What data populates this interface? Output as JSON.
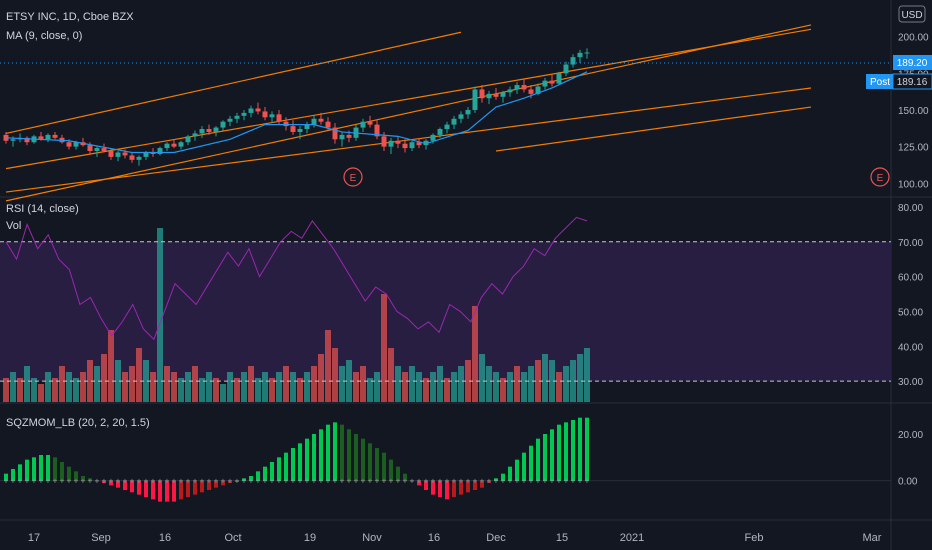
{
  "header": {
    "symbol_line": "ETSY INC, 1D, Cboe BZX",
    "ma_line": "MA (9, close, 0)",
    "currency": "USD"
  },
  "price_pane": {
    "price_axis_ticks": [
      200,
      175,
      150,
      125,
      100
    ],
    "last_price_label": "189.20",
    "post_label": "Post",
    "post_price_label": "189.16",
    "earnings_marker": "E",
    "colors": {
      "up": "#26a69a",
      "down": "#ef5350",
      "ma": "#2196f3",
      "trendline": "#f57c00",
      "post_badge": "#2196f3"
    }
  },
  "rsi_pane": {
    "title": "RSI (14, close)",
    "vol_label": "Vol",
    "axis_ticks": [
      80,
      70,
      60,
      50,
      40,
      30
    ],
    "bands": [
      70,
      30
    ],
    "colors": {
      "line": "#9c27b0",
      "band_fill": "#2a1f45",
      "vol_up": "#26a69a",
      "vol_down": "#ef5350"
    }
  },
  "sqz_pane": {
    "title": "SQZMOM_LB (20, 2, 20, 1.5)",
    "axis_ticks": [
      20,
      0
    ],
    "colors": {
      "pos_strong": "#00c853",
      "pos_weak": "#1b5e20",
      "neg_strong": "#ff1744",
      "neg_weak": "#b71c1c"
    }
  },
  "x_axis": {
    "labels": [
      "17",
      "Sep",
      "16",
      "Oct",
      "19",
      "Nov",
      "16",
      "Dec",
      "15",
      "2021",
      "Feb",
      "Mar"
    ]
  },
  "chart_data": {
    "type": "candlestick",
    "ohlc": [
      [
        133,
        135,
        127,
        129
      ],
      [
        129,
        132,
        125,
        130
      ],
      [
        130,
        134,
        128,
        131
      ],
      [
        131,
        132,
        126,
        128
      ],
      [
        128,
        133,
        127,
        132
      ],
      [
        132,
        135,
        129,
        130
      ],
      [
        130,
        134,
        128,
        133
      ],
      [
        133,
        135,
        130,
        131
      ],
      [
        131,
        133,
        127,
        128
      ],
      [
        128,
        130,
        123,
        125
      ],
      [
        125,
        129,
        123,
        128
      ],
      [
        128,
        131,
        125,
        126
      ],
      [
        126,
        128,
        120,
        122
      ],
      [
        122,
        125,
        118,
        124
      ],
      [
        124,
        127,
        121,
        122
      ],
      [
        122,
        124,
        116,
        118
      ],
      [
        118,
        122,
        115,
        121
      ],
      [
        121,
        123,
        117,
        119
      ],
      [
        119,
        121,
        114,
        116
      ],
      [
        116,
        119,
        112,
        118
      ],
      [
        118,
        122,
        116,
        121
      ],
      [
        121,
        124,
        118,
        120
      ],
      [
        120,
        125,
        119,
        124
      ],
      [
        124,
        128,
        122,
        127
      ],
      [
        127,
        130,
        124,
        125
      ],
      [
        125,
        129,
        123,
        128
      ],
      [
        128,
        133,
        126,
        132
      ],
      [
        132,
        136,
        129,
        134
      ],
      [
        134,
        139,
        131,
        137
      ],
      [
        137,
        140,
        133,
        135
      ],
      [
        135,
        139,
        132,
        138
      ],
      [
        138,
        143,
        136,
        142
      ],
      [
        142,
        146,
        139,
        144
      ],
      [
        144,
        148,
        141,
        146
      ],
      [
        146,
        150,
        143,
        148
      ],
      [
        148,
        153,
        145,
        151
      ],
      [
        151,
        155,
        147,
        149
      ],
      [
        149,
        152,
        143,
        145
      ],
      [
        145,
        149,
        141,
        147
      ],
      [
        147,
        150,
        140,
        142
      ],
      [
        142,
        145,
        136,
        139
      ],
      [
        139,
        143,
        133,
        135
      ],
      [
        135,
        139,
        130,
        137
      ],
      [
        137,
        142,
        134,
        140
      ],
      [
        140,
        146,
        138,
        144
      ],
      [
        144,
        148,
        140,
        142
      ],
      [
        142,
        145,
        136,
        138
      ],
      [
        138,
        141,
        127,
        130
      ],
      [
        130,
        135,
        125,
        133
      ],
      [
        133,
        136,
        128,
        131
      ],
      [
        131,
        140,
        129,
        138
      ],
      [
        138,
        144,
        135,
        142
      ],
      [
        142,
        146,
        138,
        140
      ],
      [
        140,
        143,
        130,
        132
      ],
      [
        132,
        135,
        122,
        125
      ],
      [
        125,
        131,
        120,
        129
      ],
      [
        129,
        132,
        124,
        127
      ],
      [
        127,
        130,
        121,
        124
      ],
      [
        124,
        129,
        122,
        128
      ],
      [
        128,
        131,
        124,
        126
      ],
      [
        126,
        130,
        123,
        129
      ],
      [
        129,
        134,
        127,
        133
      ],
      [
        133,
        138,
        131,
        137
      ],
      [
        137,
        142,
        134,
        140
      ],
      [
        140,
        146,
        137,
        144
      ],
      [
        144,
        149,
        141,
        147
      ],
      [
        147,
        152,
        144,
        150
      ],
      [
        150,
        166,
        148,
        164
      ],
      [
        164,
        167,
        155,
        158
      ],
      [
        158,
        163,
        154,
        161
      ],
      [
        161,
        165,
        157,
        159
      ],
      [
        159,
        163,
        155,
        162
      ],
      [
        162,
        166,
        159,
        164
      ],
      [
        164,
        169,
        161,
        167
      ],
      [
        167,
        171,
        162,
        164
      ],
      [
        164,
        167,
        158,
        161
      ],
      [
        161,
        168,
        160,
        166
      ],
      [
        166,
        172,
        164,
        170
      ],
      [
        170,
        174,
        166,
        168
      ],
      [
        168,
        176,
        167,
        175
      ],
      [
        175,
        183,
        173,
        181
      ],
      [
        181,
        188,
        179,
        186
      ],
      [
        186,
        191,
        182,
        189
      ],
      [
        189,
        192,
        185,
        189.2
      ]
    ],
    "ma9": [
      [
        0,
        131
      ],
      [
        9,
        129
      ],
      [
        18,
        121
      ],
      [
        24,
        121
      ],
      [
        32,
        130
      ],
      [
        37,
        140
      ],
      [
        44,
        140
      ],
      [
        48,
        135
      ],
      [
        56,
        132
      ],
      [
        60,
        127
      ],
      [
        66,
        136
      ],
      [
        70,
        152
      ],
      [
        74,
        158
      ],
      [
        78,
        165
      ],
      [
        83,
        176
      ]
    ],
    "rsi": [
      [
        0,
        70
      ],
      [
        2,
        65
      ],
      [
        4,
        75
      ],
      [
        6,
        68
      ],
      [
        8,
        72
      ],
      [
        10,
        65
      ],
      [
        12,
        62
      ],
      [
        14,
        52
      ],
      [
        16,
        54
      ],
      [
        18,
        48
      ],
      [
        20,
        43
      ],
      [
        22,
        47
      ],
      [
        24,
        52
      ],
      [
        26,
        45
      ],
      [
        28,
        42
      ],
      [
        30,
        50
      ],
      [
        32,
        58
      ],
      [
        34,
        55
      ],
      [
        36,
        52
      ],
      [
        38,
        57
      ],
      [
        40,
        62
      ],
      [
        42,
        67
      ],
      [
        44,
        63
      ],
      [
        46,
        68
      ],
      [
        48,
        60
      ],
      [
        50,
        65
      ],
      [
        52,
        70
      ],
      [
        54,
        73
      ],
      [
        56,
        71
      ],
      [
        58,
        76
      ],
      [
        60,
        72
      ],
      [
        62,
        68
      ],
      [
        64,
        63
      ],
      [
        66,
        58
      ],
      [
        68,
        53
      ],
      [
        70,
        57
      ],
      [
        72,
        55
      ],
      [
        74,
        50
      ],
      [
        76,
        48
      ],
      [
        78,
        45
      ],
      [
        80,
        47
      ],
      [
        82,
        44
      ],
      [
        84,
        52
      ],
      [
        86,
        50
      ],
      [
        88,
        47
      ],
      [
        90,
        54
      ],
      [
        92,
        58
      ],
      [
        94,
        55
      ],
      [
        96,
        60
      ],
      [
        98,
        63
      ],
      [
        100,
        68
      ],
      [
        102,
        66
      ],
      [
        104,
        71
      ],
      [
        106,
        74
      ],
      [
        108,
        77
      ],
      [
        110,
        76
      ]
    ],
    "volume": [
      [
        4,
        "d"
      ],
      [
        5,
        "u"
      ],
      [
        4,
        "d"
      ],
      [
        6,
        "u"
      ],
      [
        4,
        "u"
      ],
      [
        3,
        "d"
      ],
      [
        5,
        "u"
      ],
      [
        4,
        "d"
      ],
      [
        6,
        "d"
      ],
      [
        5,
        "u"
      ],
      [
        4,
        "u"
      ],
      [
        5,
        "d"
      ],
      [
        7,
        "d"
      ],
      [
        6,
        "u"
      ],
      [
        8,
        "d"
      ],
      [
        12,
        "d"
      ],
      [
        7,
        "u"
      ],
      [
        5,
        "d"
      ],
      [
        6,
        "d"
      ],
      [
        9,
        "d"
      ],
      [
        7,
        "u"
      ],
      [
        5,
        "d"
      ],
      [
        29,
        "u"
      ],
      [
        6,
        "d"
      ],
      [
        5,
        "d"
      ],
      [
        4,
        "u"
      ],
      [
        5,
        "u"
      ],
      [
        6,
        "d"
      ],
      [
        4,
        "u"
      ],
      [
        5,
        "u"
      ],
      [
        4,
        "d"
      ],
      [
        3,
        "u"
      ],
      [
        5,
        "u"
      ],
      [
        4,
        "d"
      ],
      [
        5,
        "u"
      ],
      [
        6,
        "d"
      ],
      [
        4,
        "u"
      ],
      [
        5,
        "u"
      ],
      [
        4,
        "d"
      ],
      [
        5,
        "u"
      ],
      [
        6,
        "d"
      ],
      [
        5,
        "u"
      ],
      [
        4,
        "d"
      ],
      [
        5,
        "u"
      ],
      [
        6,
        "d"
      ],
      [
        8,
        "d"
      ],
      [
        12,
        "d"
      ],
      [
        9,
        "d"
      ],
      [
        6,
        "u"
      ],
      [
        7,
        "u"
      ],
      [
        5,
        "d"
      ],
      [
        6,
        "d"
      ],
      [
        4,
        "u"
      ],
      [
        5,
        "u"
      ],
      [
        18,
        "d"
      ],
      [
        9,
        "d"
      ],
      [
        6,
        "u"
      ],
      [
        5,
        "d"
      ],
      [
        6,
        "u"
      ],
      [
        5,
        "u"
      ],
      [
        4,
        "d"
      ],
      [
        5,
        "u"
      ],
      [
        6,
        "u"
      ],
      [
        4,
        "d"
      ],
      [
        5,
        "u"
      ],
      [
        6,
        "u"
      ],
      [
        7,
        "d"
      ],
      [
        16,
        "d"
      ],
      [
        8,
        "u"
      ],
      [
        6,
        "u"
      ],
      [
        5,
        "u"
      ],
      [
        4,
        "d"
      ],
      [
        5,
        "u"
      ],
      [
        6,
        "d"
      ],
      [
        5,
        "u"
      ],
      [
        6,
        "u"
      ],
      [
        7,
        "d"
      ],
      [
        8,
        "u"
      ],
      [
        7,
        "u"
      ],
      [
        5,
        "d"
      ],
      [
        6,
        "u"
      ],
      [
        7,
        "u"
      ],
      [
        8,
        "u"
      ],
      [
        9,
        "u"
      ]
    ],
    "squeeze": [
      [
        0,
        3
      ],
      [
        1,
        5
      ],
      [
        2,
        7
      ],
      [
        3,
        9
      ],
      [
        4,
        10
      ],
      [
        5,
        11
      ],
      [
        6,
        11
      ],
      [
        7,
        10
      ],
      [
        8,
        8
      ],
      [
        9,
        6
      ],
      [
        10,
        4
      ],
      [
        11,
        2
      ],
      [
        12,
        1
      ],
      [
        13,
        0
      ],
      [
        14,
        -1
      ],
      [
        15,
        -2
      ],
      [
        16,
        -3
      ],
      [
        17,
        -4
      ],
      [
        18,
        -5
      ],
      [
        19,
        -6
      ],
      [
        20,
        -7
      ],
      [
        21,
        -8
      ],
      [
        22,
        -9
      ],
      [
        23,
        -9
      ],
      [
        24,
        -9
      ],
      [
        25,
        -8
      ],
      [
        26,
        -7
      ],
      [
        27,
        -6
      ],
      [
        28,
        -5
      ],
      [
        29,
        -4
      ],
      [
        30,
        -3
      ],
      [
        31,
        -2
      ],
      [
        32,
        -1
      ],
      [
        33,
        0
      ],
      [
        34,
        1
      ],
      [
        35,
        2
      ],
      [
        36,
        4
      ],
      [
        37,
        6
      ],
      [
        38,
        8
      ],
      [
        39,
        10
      ],
      [
        40,
        12
      ],
      [
        41,
        14
      ],
      [
        42,
        16
      ],
      [
        43,
        18
      ],
      [
        44,
        20
      ],
      [
        45,
        22
      ],
      [
        46,
        24
      ],
      [
        47,
        25
      ],
      [
        48,
        24
      ],
      [
        49,
        22
      ],
      [
        50,
        20
      ],
      [
        51,
        18
      ],
      [
        52,
        16
      ],
      [
        53,
        14
      ],
      [
        54,
        12
      ],
      [
        55,
        9
      ],
      [
        56,
        6
      ],
      [
        57,
        3
      ],
      [
        58,
        0
      ],
      [
        59,
        -2
      ],
      [
        60,
        -4
      ],
      [
        61,
        -6
      ],
      [
        62,
        -7
      ],
      [
        63,
        -8
      ],
      [
        64,
        -7
      ],
      [
        65,
        -6
      ],
      [
        66,
        -5
      ],
      [
        67,
        -4
      ],
      [
        68,
        -3
      ],
      [
        69,
        -1
      ],
      [
        70,
        1
      ],
      [
        71,
        3
      ],
      [
        72,
        6
      ],
      [
        73,
        9
      ],
      [
        74,
        12
      ],
      [
        75,
        15
      ],
      [
        76,
        18
      ],
      [
        77,
        20
      ],
      [
        78,
        22
      ],
      [
        79,
        24
      ],
      [
        80,
        25
      ],
      [
        81,
        26
      ],
      [
        82,
        27
      ],
      [
        83,
        27
      ]
    ],
    "trendlines": [
      [
        [
          0,
          88
        ],
        [
          115,
          208
        ]
      ],
      [
        [
          0,
          110
        ],
        [
          115,
          205
        ]
      ],
      [
        [
          0,
          134
        ],
        [
          65,
          203
        ]
      ],
      [
        [
          0,
          94
        ],
        [
          115,
          165
        ]
      ],
      [
        [
          70,
          122
        ],
        [
          115,
          152
        ]
      ]
    ],
    "y_range": [
      92,
      210
    ],
    "rsi_range": [
      24,
      82
    ],
    "sqz_range": [
      -16,
      32
    ]
  }
}
